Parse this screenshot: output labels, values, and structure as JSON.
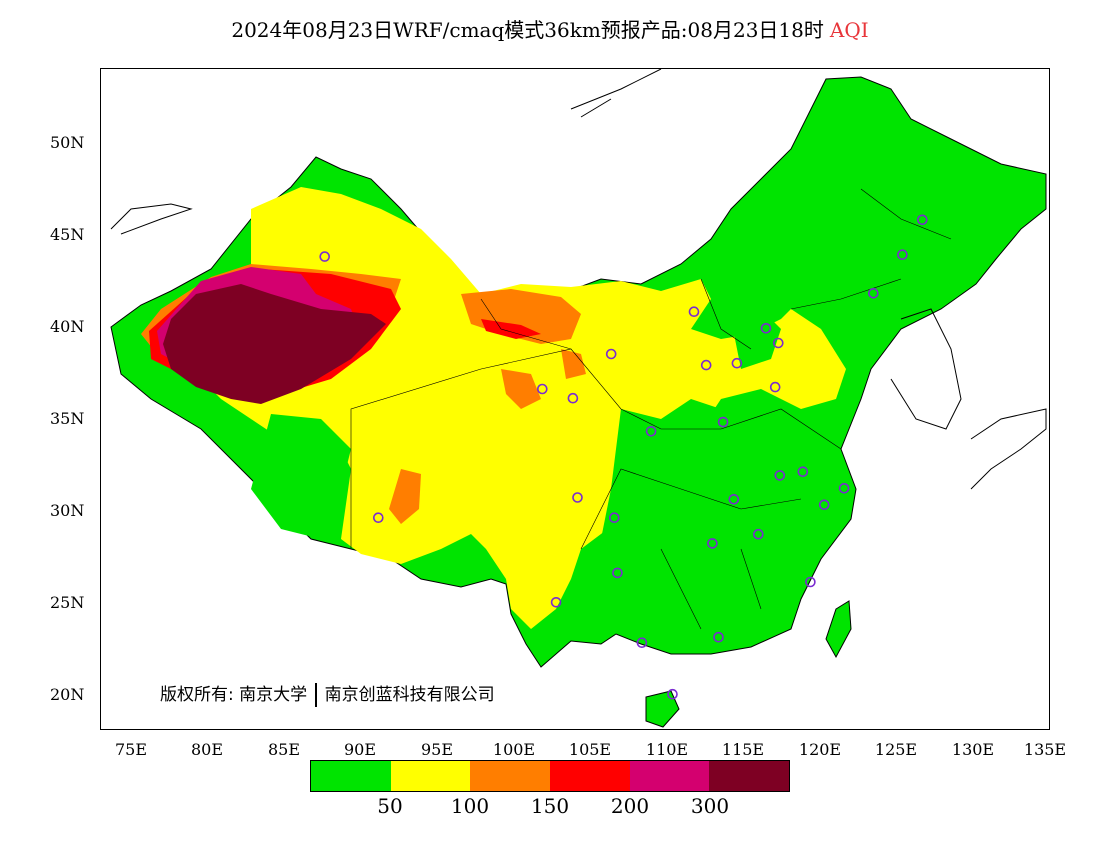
{
  "title": {
    "text": "2024年08月23日WRF/cmaq模式36km预报产品:08月23日18时",
    "variable": "AQI",
    "variable_color": "#e8353a"
  },
  "map": {
    "lon_range": [
      73,
      135
    ],
    "lat_range": [
      18,
      54
    ],
    "x_ticks": [
      "75E",
      "80E",
      "85E",
      "90E",
      "95E",
      "100E",
      "105E",
      "110E",
      "115E",
      "120E",
      "125E",
      "130E",
      "135E"
    ],
    "y_ticks": [
      "50N",
      "45N",
      "40N",
      "35N",
      "30N",
      "25N",
      "20N"
    ],
    "copyright_label": "版权所有:",
    "copyright_org1": "南京大学",
    "copyright_org2": "南京创蓝科技有限公司",
    "station_marker_color": "#7a2bd0",
    "stations": [
      {
        "lon": 87.6,
        "lat": 43.8
      },
      {
        "lon": 91.1,
        "lat": 29.6
      },
      {
        "lon": 101.8,
        "lat": 36.6
      },
      {
        "lon": 103.8,
        "lat": 36.1
      },
      {
        "lon": 106.3,
        "lat": 38.5
      },
      {
        "lon": 104.1,
        "lat": 30.7
      },
      {
        "lon": 106.5,
        "lat": 29.6
      },
      {
        "lon": 106.7,
        "lat": 26.6
      },
      {
        "lon": 102.7,
        "lat": 25.0
      },
      {
        "lon": 108.3,
        "lat": 22.8
      },
      {
        "lon": 110.3,
        "lat": 20.0
      },
      {
        "lon": 113.3,
        "lat": 23.1
      },
      {
        "lon": 119.3,
        "lat": 26.1
      },
      {
        "lon": 112.9,
        "lat": 28.2
      },
      {
        "lon": 115.9,
        "lat": 28.7
      },
      {
        "lon": 114.3,
        "lat": 30.6
      },
      {
        "lon": 117.3,
        "lat": 31.9
      },
      {
        "lon": 118.8,
        "lat": 32.1
      },
      {
        "lon": 120.2,
        "lat": 30.3
      },
      {
        "lon": 121.5,
        "lat": 31.2
      },
      {
        "lon": 108.9,
        "lat": 34.3
      },
      {
        "lon": 113.6,
        "lat": 34.8
      },
      {
        "lon": 112.5,
        "lat": 37.9
      },
      {
        "lon": 114.5,
        "lat": 38.0
      },
      {
        "lon": 116.4,
        "lat": 39.9
      },
      {
        "lon": 117.2,
        "lat": 39.1
      },
      {
        "lon": 117.0,
        "lat": 36.7
      },
      {
        "lon": 111.7,
        "lat": 40.8
      },
      {
        "lon": 123.4,
        "lat": 41.8
      },
      {
        "lon": 125.3,
        "lat": 43.9
      },
      {
        "lon": 126.6,
        "lat": 45.8
      }
    ]
  },
  "legend": {
    "colors": [
      "#00e400",
      "#ffff00",
      "#ff7e00",
      "#ff0000",
      "#d4006f",
      "#7e0023"
    ],
    "labels": [
      "50",
      "100",
      "150",
      "200",
      "300"
    ]
  }
}
